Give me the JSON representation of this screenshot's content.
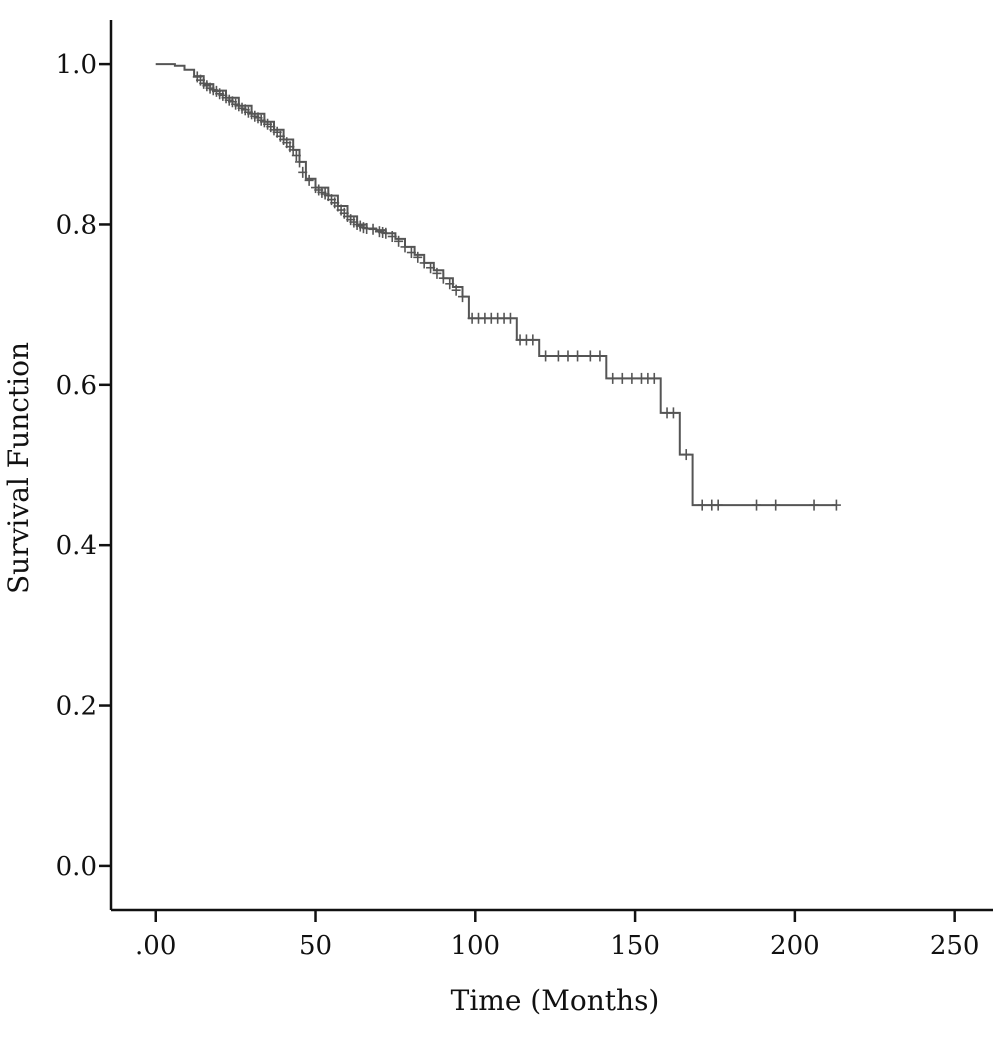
{
  "chart_data": {
    "type": "line",
    "title": "",
    "xlabel": "Time (Months)",
    "ylabel": "Survival Function",
    "xlim": [
      -14,
      262
    ],
    "ylim": [
      -0.055,
      1.055
    ],
    "x_ticks": [
      0,
      50,
      100,
      150,
      200,
      250
    ],
    "x_tick_labels": [
      ".00",
      "50",
      "100",
      "150",
      "200",
      "250"
    ],
    "y_ticks": [
      0.0,
      0.2,
      0.4,
      0.6,
      0.8,
      1.0
    ],
    "y_tick_labels": [
      "0.0",
      "0.2",
      "0.4",
      "0.6",
      "0.8",
      "1.0"
    ],
    "grid": false,
    "legend": "none",
    "series": [
      {
        "step_points": [
          [
            0,
            1.0
          ],
          [
            6,
            0.998
          ],
          [
            9,
            0.993
          ],
          [
            12,
            0.985
          ],
          [
            15,
            0.975
          ],
          [
            18,
            0.967
          ],
          [
            22,
            0.958
          ],
          [
            26,
            0.948
          ],
          [
            30,
            0.938
          ],
          [
            34,
            0.928
          ],
          [
            37,
            0.918
          ],
          [
            40,
            0.906
          ],
          [
            43,
            0.893
          ],
          [
            45,
            0.878
          ],
          [
            47,
            0.857
          ],
          [
            50,
            0.846
          ],
          [
            54,
            0.836
          ],
          [
            57,
            0.823
          ],
          [
            60,
            0.81
          ],
          [
            63,
            0.8
          ],
          [
            66,
            0.795
          ],
          [
            69,
            0.793
          ],
          [
            72,
            0.789
          ],
          [
            75,
            0.782
          ],
          [
            78,
            0.772
          ],
          [
            81,
            0.762
          ],
          [
            84,
            0.752
          ],
          [
            87,
            0.743
          ],
          [
            90,
            0.733
          ],
          [
            93,
            0.722
          ],
          [
            96,
            0.71
          ],
          [
            98,
            0.683
          ],
          [
            113,
            0.656
          ],
          [
            120,
            0.636
          ],
          [
            141,
            0.608
          ],
          [
            158,
            0.565
          ],
          [
            164,
            0.513
          ],
          [
            168,
            0.45
          ],
          [
            213,
            0.45
          ]
        ],
        "censored": [
          [
            13,
            0.984
          ],
          [
            14,
            0.98
          ],
          [
            15,
            0.976
          ],
          [
            16,
            0.973
          ],
          [
            17,
            0.97
          ],
          [
            18,
            0.968
          ],
          [
            19,
            0.966
          ],
          [
            20,
            0.963
          ],
          [
            21,
            0.961
          ],
          [
            22,
            0.958
          ],
          [
            23,
            0.955
          ],
          [
            24,
            0.953
          ],
          [
            25,
            0.95
          ],
          [
            26,
            0.948
          ],
          [
            27,
            0.945
          ],
          [
            28,
            0.943
          ],
          [
            29,
            0.94
          ],
          [
            30,
            0.938
          ],
          [
            31,
            0.935
          ],
          [
            32,
            0.933
          ],
          [
            33,
            0.93
          ],
          [
            34,
            0.928
          ],
          [
            35,
            0.925
          ],
          [
            36,
            0.922
          ],
          [
            37,
            0.918
          ],
          [
            38,
            0.915
          ],
          [
            39,
            0.91
          ],
          [
            40,
            0.906
          ],
          [
            41,
            0.902
          ],
          [
            42,
            0.897
          ],
          [
            43,
            0.893
          ],
          [
            44,
            0.886
          ],
          [
            45,
            0.878
          ],
          [
            46,
            0.865
          ],
          [
            48,
            0.855
          ],
          [
            50,
            0.846
          ],
          [
            51,
            0.843
          ],
          [
            52,
            0.84
          ],
          [
            53,
            0.838
          ],
          [
            54,
            0.836
          ],
          [
            55,
            0.831
          ],
          [
            56,
            0.827
          ],
          [
            57,
            0.823
          ],
          [
            58,
            0.818
          ],
          [
            59,
            0.814
          ],
          [
            60,
            0.81
          ],
          [
            61,
            0.806
          ],
          [
            62,
            0.803
          ],
          [
            63,
            0.8
          ],
          [
            64,
            0.798
          ],
          [
            65,
            0.796
          ],
          [
            66,
            0.795
          ],
          [
            68,
            0.794
          ],
          [
            70,
            0.791
          ],
          [
            71,
            0.79
          ],
          [
            72,
            0.789
          ],
          [
            74,
            0.785
          ],
          [
            76,
            0.779
          ],
          [
            78,
            0.772
          ],
          [
            80,
            0.765
          ],
          [
            82,
            0.759
          ],
          [
            84,
            0.752
          ],
          [
            86,
            0.746
          ],
          [
            88,
            0.739
          ],
          [
            90,
            0.733
          ],
          [
            92,
            0.726
          ],
          [
            94,
            0.718
          ],
          [
            96,
            0.71
          ],
          [
            99,
            0.683
          ],
          [
            101,
            0.683
          ],
          [
            103,
            0.683
          ],
          [
            105,
            0.683
          ],
          [
            107,
            0.683
          ],
          [
            109,
            0.683
          ],
          [
            111,
            0.683
          ],
          [
            114,
            0.656
          ],
          [
            116,
            0.656
          ],
          [
            118,
            0.656
          ],
          [
            122,
            0.636
          ],
          [
            126,
            0.636
          ],
          [
            129,
            0.636
          ],
          [
            132,
            0.636
          ],
          [
            136,
            0.636
          ],
          [
            139,
            0.636
          ],
          [
            143,
            0.608
          ],
          [
            146,
            0.608
          ],
          [
            149,
            0.608
          ],
          [
            152,
            0.608
          ],
          [
            154,
            0.608
          ],
          [
            156,
            0.608
          ],
          [
            160,
            0.565
          ],
          [
            162,
            0.565
          ],
          [
            166,
            0.513
          ],
          [
            171,
            0.45
          ],
          [
            174,
            0.45
          ],
          [
            176,
            0.45
          ],
          [
            188,
            0.45
          ],
          [
            194,
            0.45
          ],
          [
            206,
            0.45
          ],
          [
            213,
            0.45
          ]
        ]
      }
    ]
  }
}
